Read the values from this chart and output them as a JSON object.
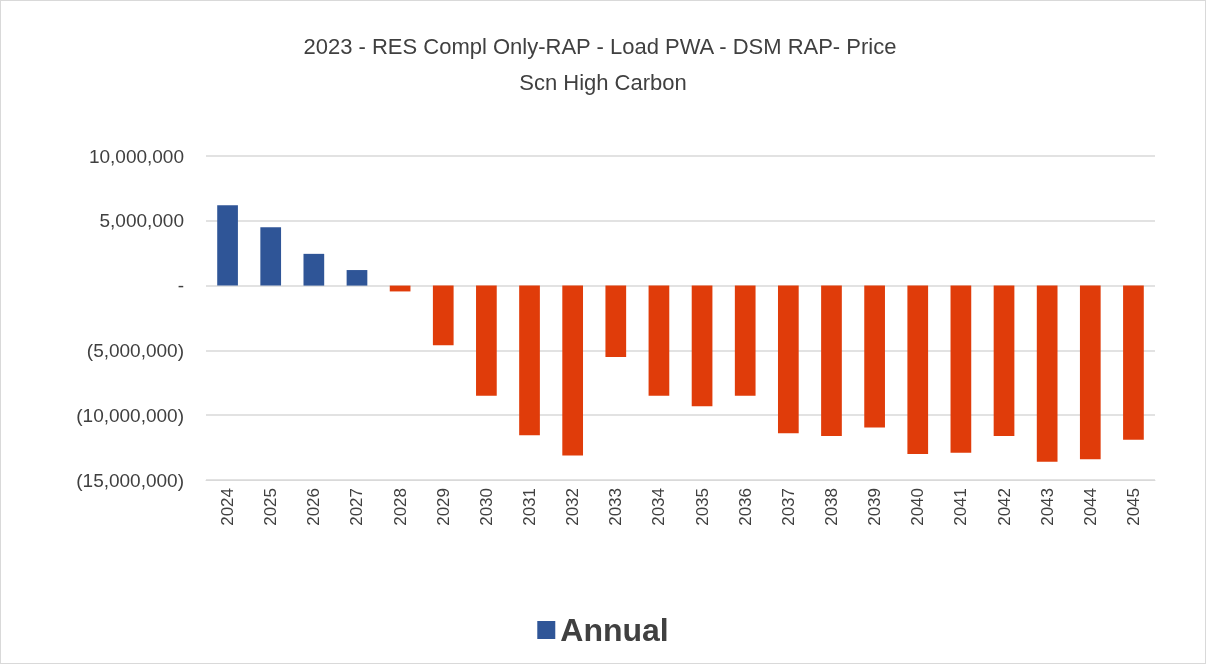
{
  "chart_data": {
    "type": "bar",
    "title": "2023 - RES Compl Only-RAP - Load PWA - DSM RAP- Price Scn High Carbon",
    "categories": [
      "2024",
      "2025",
      "2026",
      "2027",
      "2028",
      "2029",
      "2030",
      "2031",
      "2032",
      "2033",
      "2034",
      "2035",
      "2036",
      "2037",
      "2038",
      "2039",
      "2040",
      "2041",
      "2042",
      "2043",
      "2044",
      "2045"
    ],
    "series": [
      {
        "name": "Annual",
        "color": "#2f5597",
        "values": [
          6200000,
          4500000,
          2450000,
          1200000,
          -450000,
          -4600000,
          -8500000,
          -11550000,
          -13100000,
          -5500000,
          -8500000,
          -9300000,
          -8500000,
          -11400000,
          -11600000,
          -10950000,
          -13000000,
          -12900000,
          -11600000,
          -13600000,
          -13400000,
          -11900000
        ],
        "colors": [
          "#2f5597",
          "#2f5597",
          "#2f5597",
          "#2f5597",
          "#e03c0a",
          "#e03c0a",
          "#e03c0a",
          "#e03c0a",
          "#e03c0a",
          "#e03c0a",
          "#e03c0a",
          "#e03c0a",
          "#e03c0a",
          "#e03c0a",
          "#e03c0a",
          "#e03c0a",
          "#e03c0a",
          "#e03c0a",
          "#e03c0a",
          "#e03c0a",
          "#e03c0a",
          "#e03c0a"
        ]
      }
    ],
    "ylim": [
      -15000000,
      10000000
    ],
    "yticks": [
      {
        "value": -15000000,
        "label": "(15,000,000)"
      },
      {
        "value": -10000000,
        "label": "(10,000,000)"
      },
      {
        "value": -5000000,
        "label": "(5,000,000)"
      },
      {
        "value": 0,
        "label": "-"
      },
      {
        "value": 5000000,
        "label": "5,000,000"
      },
      {
        "value": 10000000,
        "label": "10,000,000"
      }
    ],
    "grid": "y",
    "legend": "bottom"
  }
}
